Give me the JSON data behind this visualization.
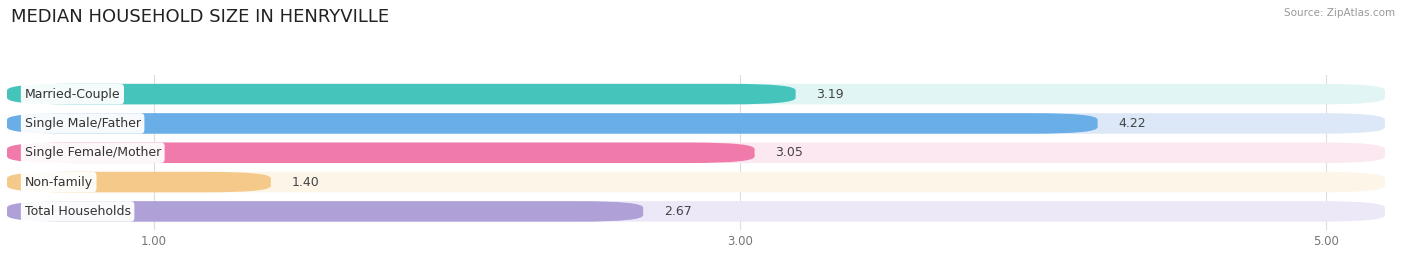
{
  "title": "MEDIAN HOUSEHOLD SIZE IN HENRYVILLE",
  "source": "Source: ZipAtlas.com",
  "categories": [
    "Married-Couple",
    "Single Male/Father",
    "Single Female/Mother",
    "Non-family",
    "Total Households"
  ],
  "values": [
    3.19,
    4.22,
    3.05,
    1.4,
    2.67
  ],
  "bar_colors": [
    "#45c4bc",
    "#6aaee8",
    "#f07aaa",
    "#f5c98a",
    "#b0a0d8"
  ],
  "bar_bg_colors": [
    "#e0f5f4",
    "#dce8f8",
    "#fce8f0",
    "#fdf5e8",
    "#ece8f8"
  ],
  "xlim_min": 0.5,
  "xlim_max": 5.2,
  "xticks": [
    1.0,
    3.0,
    5.0
  ],
  "xtick_labels": [
    "1.00",
    "3.00",
    "5.00"
  ],
  "title_fontsize": 13,
  "label_fontsize": 9,
  "value_fontsize": 9,
  "background_color": "#ffffff",
  "source_color": "#999999"
}
